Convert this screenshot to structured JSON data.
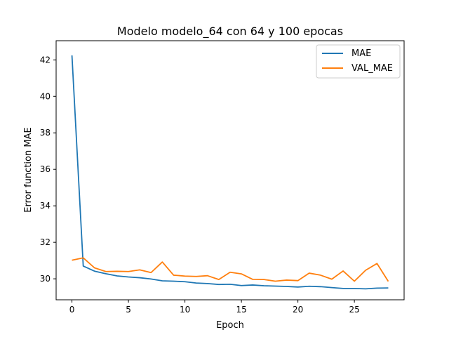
{
  "chart_data": {
    "type": "line",
    "title": "Modelo  modelo_64 con 64 y 100 epocas",
    "xlabel": "Epoch",
    "ylabel": "Error function MAE",
    "xlim": [
      -1.4,
      29.4
    ],
    "ylim": [
      28.85,
      43.05
    ],
    "xticks": [
      0,
      5,
      10,
      15,
      20,
      25
    ],
    "yticks": [
      30,
      32,
      34,
      36,
      38,
      40,
      42
    ],
    "grid": false,
    "legend_position": "top-right",
    "series": [
      {
        "name": "MAE",
        "color": "#1f77b4",
        "x": [
          0,
          1,
          2,
          3,
          4,
          5,
          6,
          7,
          8,
          9,
          10,
          11,
          12,
          13,
          14,
          15,
          16,
          17,
          18,
          19,
          20,
          21,
          22,
          23,
          24,
          25,
          26,
          27,
          28
        ],
        "values": [
          42.25,
          30.7,
          30.42,
          30.28,
          30.16,
          30.1,
          30.06,
          29.99,
          29.89,
          29.87,
          29.84,
          29.77,
          29.74,
          29.69,
          29.7,
          29.63,
          29.66,
          29.62,
          29.6,
          29.58,
          29.55,
          29.59,
          29.57,
          29.52,
          29.47,
          29.47,
          29.45,
          29.49,
          29.5
        ]
      },
      {
        "name": "VAL_MAE",
        "color": "#ff7f0e",
        "x": [
          0,
          1,
          2,
          3,
          4,
          5,
          6,
          7,
          8,
          9,
          10,
          11,
          12,
          13,
          14,
          15,
          16,
          17,
          18,
          19,
          20,
          21,
          22,
          23,
          24,
          25,
          26,
          27,
          28
        ],
        "values": [
          31.02,
          31.15,
          30.6,
          30.4,
          30.41,
          30.4,
          30.49,
          30.34,
          30.92,
          30.2,
          30.15,
          30.13,
          30.17,
          29.96,
          30.36,
          30.27,
          29.97,
          29.96,
          29.87,
          29.93,
          29.9,
          30.31,
          30.2,
          29.98,
          30.43,
          29.87,
          30.47,
          30.84,
          29.86
        ]
      }
    ]
  }
}
